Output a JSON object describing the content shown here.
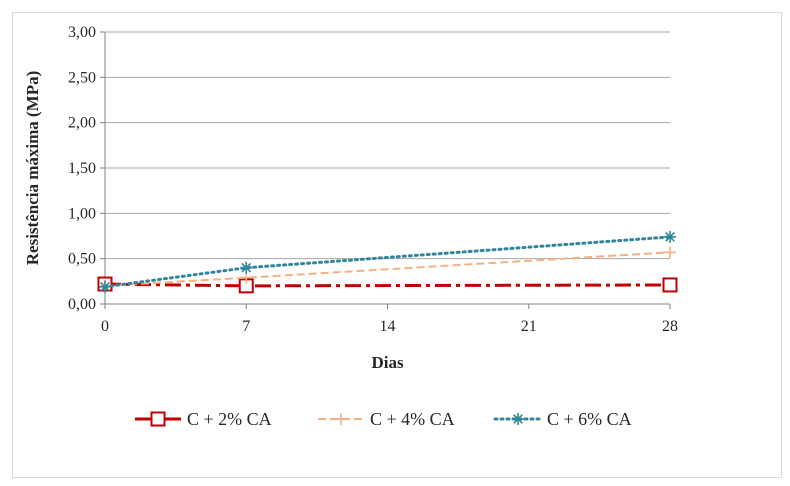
{
  "chart_data": {
    "type": "line",
    "title": "",
    "xlabel": "Dias",
    "ylabel": "Resistência máxima (MPa)",
    "x": [
      0,
      7,
      28
    ],
    "x_ticks": [
      "0",
      "7",
      "14",
      "21",
      "28"
    ],
    "x_tick_values": [
      0,
      7,
      14,
      21,
      28
    ],
    "xlim": [
      0,
      28
    ],
    "y_ticks": [
      "0,00",
      "0,50",
      "1,00",
      "1,50",
      "2,00",
      "2,50",
      "3,00"
    ],
    "y_tick_values": [
      0,
      0.5,
      1,
      1.5,
      2,
      2.5,
      3
    ],
    "ylim": [
      0,
      3
    ],
    "grid": "horizontal",
    "legend_position": "bottom",
    "series": [
      {
        "name": "C + 2% CA",
        "values": [
          0.22,
          0.2,
          0.21
        ],
        "color": "#c00000",
        "marker": "square",
        "line_style": "dash-dot"
      },
      {
        "name": "C + 4% CA",
        "values": [
          0.2,
          0.29,
          0.57
        ],
        "color": "#f4b183",
        "marker": "plus",
        "line_style": "dashed"
      },
      {
        "name": "C + 6% CA",
        "values": [
          0.19,
          0.4,
          0.74
        ],
        "color": "#31859c",
        "marker": "asterisk",
        "line_style": "dotted"
      }
    ]
  }
}
